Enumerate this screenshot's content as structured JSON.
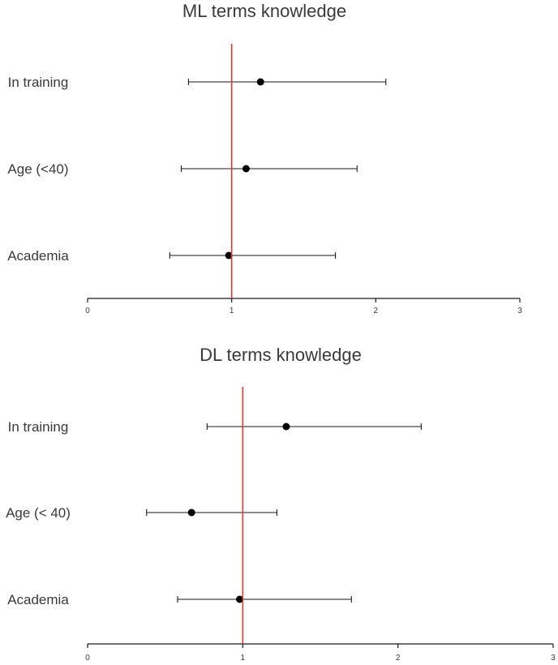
{
  "chart_data": [
    {
      "type": "scatter",
      "title": "ML terms knowledge",
      "categories": [
        "In training",
        "Age (<40)",
        "Academia"
      ],
      "estimates": [
        1.2,
        1.1,
        0.98
      ],
      "ci_lower": [
        0.7,
        0.65,
        0.57
      ],
      "ci_upper": [
        2.07,
        1.87,
        1.72
      ],
      "reference_line": 1,
      "reference_color": "#e03a2f",
      "xticks": [
        0,
        1,
        2,
        3
      ],
      "xlim": [
        0,
        3
      ],
      "grid": false
    },
    {
      "type": "scatter",
      "title": "DL terms knowledge",
      "categories": [
        "In training",
        "Age (< 40)",
        "Academia"
      ],
      "estimates": [
        1.28,
        0.67,
        0.98
      ],
      "ci_lower": [
        0.77,
        0.38,
        0.58
      ],
      "ci_upper": [
        2.15,
        1.22,
        1.7
      ],
      "reference_line": 1,
      "reference_color": "#e03a2f",
      "xticks": [
        0,
        1,
        2,
        3
      ],
      "xlim": [
        0,
        3
      ],
      "grid": false
    }
  ]
}
